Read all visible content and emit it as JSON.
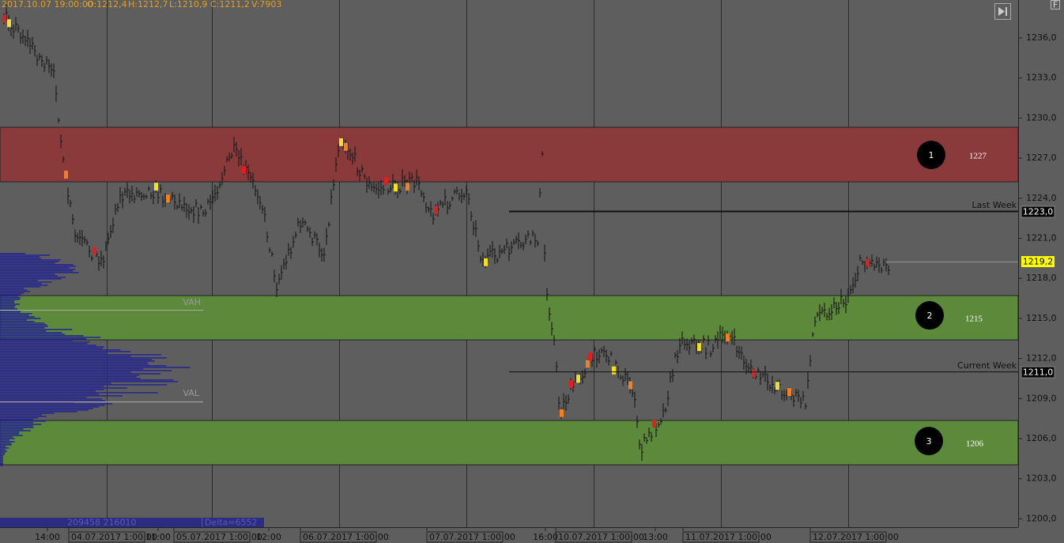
{
  "header": {
    "datetime": "2017.10.07 19:00:00",
    "open": "O:1212,4",
    "high": "H:1212,7",
    "low": "L:1210,9",
    "close": "C:1211,2",
    "volume": "V:7903"
  },
  "price_axis": [
    "1236,0",
    "1233,0",
    "1230,0",
    "1227,0",
    "1224,0",
    "1221,0",
    "1218,0",
    "1215,0",
    "1212,0",
    "1209,0",
    "1206,0",
    "1203,0",
    "1200,0"
  ],
  "zones": [
    {
      "number": "1",
      "label": "1227"
    },
    {
      "number": "2",
      "label": "1215"
    },
    {
      "number": "3",
      "label": "1206"
    }
  ],
  "levels": [
    {
      "label": "Last Week",
      "price": "1223,0"
    },
    {
      "label": "Current Week",
      "price": "1211,0"
    }
  ],
  "last_price": "1219,2",
  "profile": {
    "vah": "VAH",
    "val": "VAL",
    "volumes": "209458 216010",
    "delta": "Delta=6552"
  },
  "time_axis": [
    "14:00",
    "04.07.2017 1:00:00",
    "11:00",
    "05.07.2017 1:00:00",
    "12:00",
    "06.07.2017 1:00:00",
    "07.07.2017 1:00:00",
    "16:00",
    "10.07.2017 1:00:00",
    "13:00",
    "11.07.2017 1:00:00",
    "12.07.2017 1:00:00"
  ],
  "button": "F"
}
